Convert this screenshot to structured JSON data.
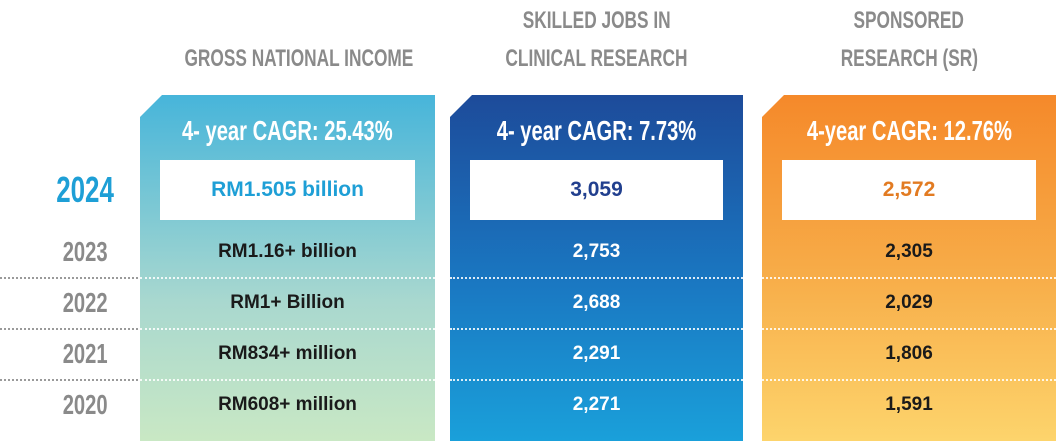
{
  "years": [
    "2024",
    "2023",
    "2022",
    "2021",
    "2020"
  ],
  "columns": [
    {
      "header": [
        "GROSS NATIONAL INCOME"
      ],
      "cagr": "4- year CAGR: 25.43%",
      "values": [
        "RM1.505 billion",
        "RM1.16+ billion",
        "RM1+ Billion",
        "RM834+ million",
        "RM608+ million"
      ]
    },
    {
      "header": [
        "SKILLED JOBS IN",
        "CLINICAL RESEARCH"
      ],
      "cagr": "4- year CAGR: 7.73%",
      "values": [
        "3,059",
        "2,753",
        "2,688",
        "2,291",
        "2,271"
      ]
    },
    {
      "header": [
        "SPONSORED",
        "RESEARCH (SR)"
      ],
      "cagr": "4-year CAGR: 12.76%",
      "values": [
        "2,572",
        "2,305",
        "2,029",
        "1,806",
        "1,591"
      ]
    }
  ]
}
